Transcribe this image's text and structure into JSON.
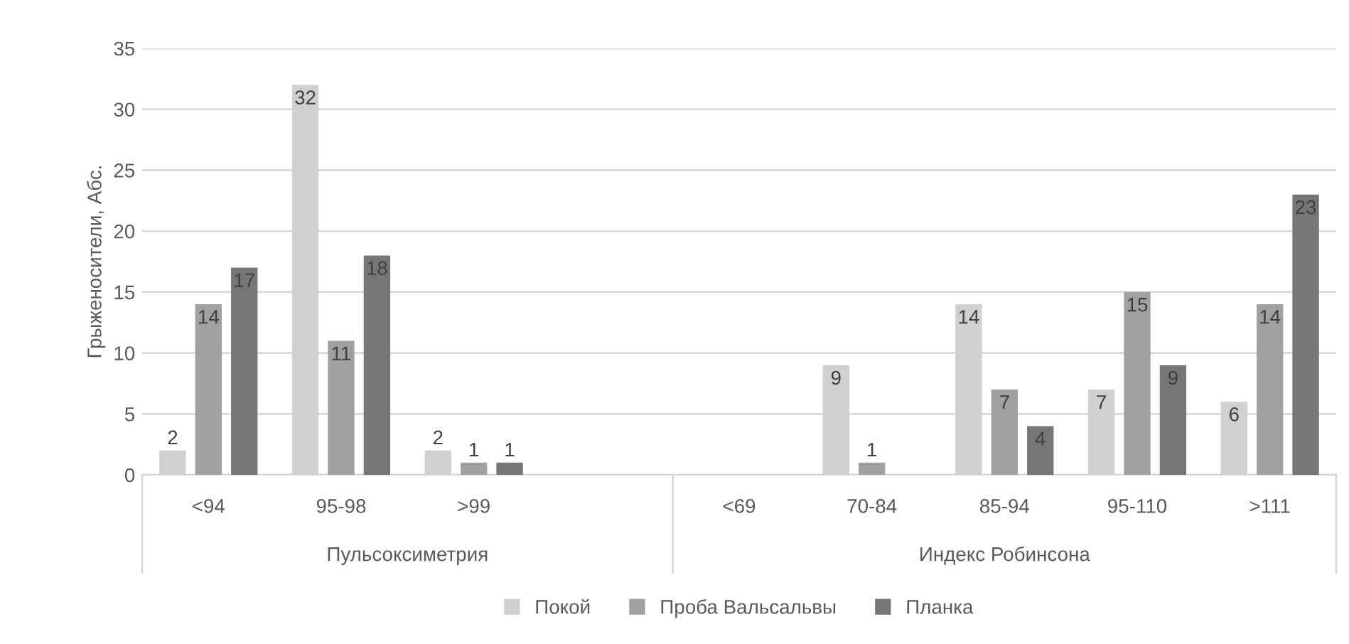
{
  "chart_data": {
    "type": "bar",
    "ylabel": "Грыженосители, Абс.",
    "categories": [
      "<94",
      "95-98",
      ">99",
      null,
      "<69",
      "70-84",
      "85-94",
      "95-110",
      ">111"
    ],
    "series": [
      {
        "name": "Покой",
        "color": "#d0d0d0",
        "values": [
          2,
          32,
          2,
          null,
          null,
          9,
          14,
          7,
          6
        ]
      },
      {
        "name": "Проба Вальсальвы",
        "color": "#a0a0a0",
        "values": [
          14,
          11,
          1,
          null,
          null,
          1,
          7,
          15,
          14
        ]
      },
      {
        "name": "Планка",
        "color": "#767676",
        "values": [
          17,
          18,
          1,
          null,
          null,
          null,
          4,
          9,
          23
        ]
      }
    ],
    "annotations": [
      "Пульсоксиметрия",
      "Индекс Робинсона"
    ],
    "ylim": [
      0,
      35
    ],
    "yticks": [
      0,
      5,
      10,
      15,
      20,
      25,
      30,
      35
    ],
    "grid": "y",
    "legend": "bottom",
    "data_labels": true
  }
}
